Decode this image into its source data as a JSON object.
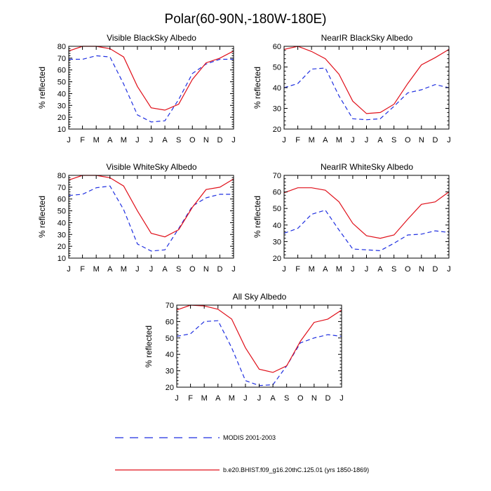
{
  "figure_title": "Polar(60-90N,-180W-180E)",
  "legend": {
    "obs_label": "MODIS 2001-2003",
    "model_label": "b.e20.BHIST.f09_g16.20thC.125.01 (yrs 1850-1869)"
  },
  "colors": {
    "obs": "#1f2fe0",
    "model": "#e0101a",
    "axis": "#000000"
  },
  "chart_data": [
    {
      "type": "line",
      "title": "Visible BlackSky Albedo",
      "ylabel": "% reflected",
      "x": [
        "J",
        "F",
        "M",
        "A",
        "M",
        "J",
        "J",
        "A",
        "S",
        "O",
        "N",
        "D",
        "J"
      ],
      "ylim": [
        10,
        80
      ],
      "yticks": [
        10,
        20,
        30,
        40,
        50,
        60,
        70,
        80
      ],
      "series": [
        {
          "name": "MODIS 2001-2003",
          "style": "dashed",
          "values": [
            69,
            69,
            72,
            71,
            48,
            22,
            16,
            17,
            35,
            57,
            65,
            69,
            69
          ]
        },
        {
          "name": "b.e20.BHIST.f09_g16.20thC.125.01 (yrs 1850-1869)",
          "style": "solid",
          "values": [
            76,
            80,
            80,
            78,
            71,
            46,
            28,
            26,
            31,
            52,
            66,
            70,
            76
          ]
        }
      ]
    },
    {
      "type": "line",
      "title": "NearIR BlackSky Albedo",
      "ylabel": "% reflected",
      "x": [
        "J",
        "F",
        "M",
        "A",
        "M",
        "J",
        "J",
        "A",
        "S",
        "O",
        "N",
        "D",
        "J"
      ],
      "ylim": [
        20,
        60
      ],
      "yticks": [
        20,
        30,
        40,
        50,
        60
      ],
      "series": [
        {
          "name": "MODIS 2001-2003",
          "style": "dashed",
          "values": [
            40,
            42,
            49,
            49.5,
            36,
            25,
            24.5,
            25,
            31,
            37.5,
            39,
            41.5,
            40
          ]
        },
        {
          "name": "b.e20.BHIST.f09_g16.20thC.125.01 (yrs 1850-1869)",
          "style": "solid",
          "values": [
            58.5,
            60,
            57.5,
            54,
            46.5,
            33.5,
            27.5,
            28,
            32,
            42,
            51,
            54.5,
            58.5
          ]
        }
      ]
    },
    {
      "type": "line",
      "title": "Visible WhiteSky Albedo",
      "ylabel": "% reflected",
      "x": [
        "J",
        "F",
        "M",
        "A",
        "M",
        "J",
        "J",
        "A",
        "S",
        "O",
        "N",
        "D",
        "J"
      ],
      "ylim": [
        10,
        80
      ],
      "yticks": [
        10,
        20,
        30,
        40,
        50,
        60,
        70,
        80
      ],
      "series": [
        {
          "name": "MODIS 2001-2003",
          "style": "dashed",
          "values": [
            63,
            64,
            69.5,
            71,
            51,
            22,
            16,
            17,
            35,
            54,
            61,
            64,
            64
          ]
        },
        {
          "name": "b.e20.BHIST.f09_g16.20thC.125.01 (yrs 1850-1869)",
          "style": "solid",
          "values": [
            76,
            80,
            80,
            78,
            71,
            50,
            31,
            28,
            34,
            53,
            68,
            70,
            77
          ]
        }
      ]
    },
    {
      "type": "line",
      "title": "NearIR WhiteSky Albedo",
      "ylabel": "% reflected",
      "x": [
        "J",
        "F",
        "M",
        "A",
        "M",
        "J",
        "J",
        "A",
        "S",
        "O",
        "N",
        "D",
        "J"
      ],
      "ylim": [
        20,
        70
      ],
      "yticks": [
        20,
        30,
        40,
        50,
        60,
        70
      ],
      "series": [
        {
          "name": "MODIS 2001-2003",
          "style": "dashed",
          "values": [
            35,
            38,
            46.5,
            49,
            37,
            25.5,
            25,
            24.5,
            29,
            34,
            34.5,
            36.5,
            35.5
          ]
        },
        {
          "name": "b.e20.BHIST.f09_g16.20thC.125.01 (yrs 1850-1869)",
          "style": "solid",
          "values": [
            59.5,
            62.5,
            62.5,
            61,
            54,
            41,
            33.5,
            32,
            34,
            43.5,
            52.5,
            54,
            60
          ]
        }
      ]
    },
    {
      "type": "line",
      "title": "All Sky Albedo",
      "ylabel": "% reflected",
      "x": [
        "J",
        "F",
        "M",
        "A",
        "M",
        "J",
        "J",
        "A",
        "S",
        "O",
        "N",
        "D",
        "J"
      ],
      "ylim": [
        20,
        70
      ],
      "yticks": [
        20,
        30,
        40,
        50,
        60,
        70
      ],
      "series": [
        {
          "name": "MODIS 2001-2003",
          "style": "dashed",
          "values": [
            51,
            52.5,
            60,
            60.5,
            44,
            24,
            21,
            21.5,
            33,
            47,
            50,
            52,
            51
          ]
        },
        {
          "name": "b.e20.BHIST.f09_g16.20thC.125.01 (yrs 1850-1869)",
          "style": "solid",
          "values": [
            67,
            70,
            69.5,
            67.5,
            61.5,
            44,
            31,
            29,
            33,
            48,
            59.5,
            61.5,
            67
          ]
        }
      ]
    }
  ]
}
